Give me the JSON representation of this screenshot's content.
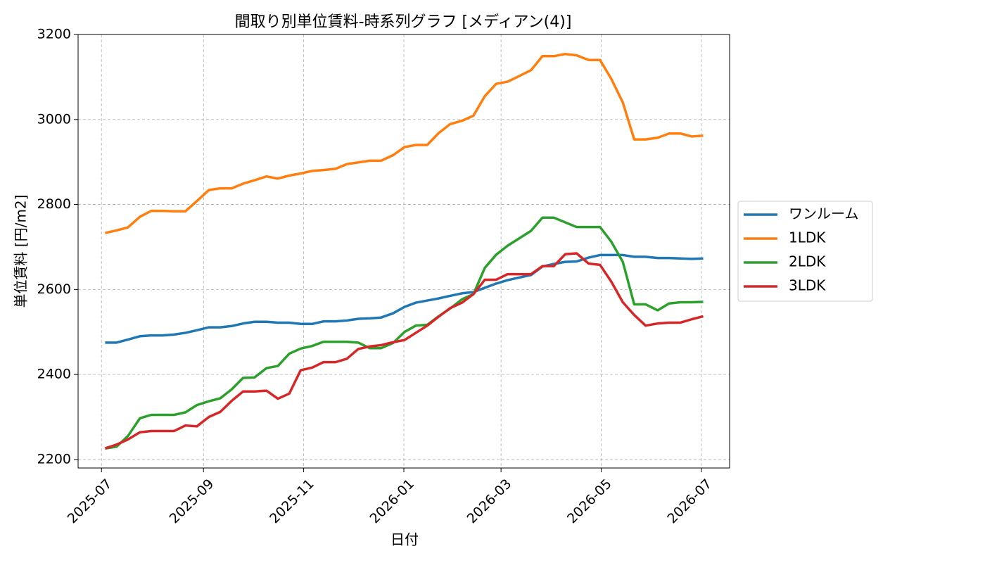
{
  "chart_data": {
    "type": "line",
    "title": "間取り別単位賃料-時系列グラフ [メディアン(4)]",
    "x_label": "日付",
    "y_label": "単位賃料 [円/m2]",
    "x": [
      2025.502,
      2025.521,
      2025.54,
      2025.56,
      2025.579,
      2025.598,
      2025.617,
      2025.636,
      2025.655,
      2025.675,
      2025.694,
      2025.713,
      2025.732,
      2025.751,
      2025.771,
      2025.79,
      2025.809,
      2025.828,
      2025.847,
      2025.866,
      2025.886,
      2025.905,
      2025.924,
      2025.943,
      2025.962,
      2025.982,
      2026.001,
      2026.02,
      2026.039,
      2026.058,
      2026.077,
      2026.097,
      2026.116,
      2026.135,
      2026.154,
      2026.173,
      2026.192,
      2026.212,
      2026.231,
      2026.25,
      2026.269,
      2026.288,
      2026.308,
      2026.327,
      2026.346,
      2026.365,
      2026.384,
      2026.403,
      2026.423,
      2026.442,
      2026.461,
      2026.48,
      2026.499
    ],
    "series": [
      {
        "name": "ワンルーム",
        "color": "#1f77b4",
        "values": [
          2475,
          2475,
          2482,
          2490,
          2492,
          2492,
          2494,
          2498,
          2504,
          2511,
          2511,
          2514,
          2520,
          2524,
          2524,
          2522,
          2522,
          2519,
          2519,
          2525,
          2525,
          2527,
          2531,
          2532,
          2534,
          2544,
          2559,
          2569,
          2574,
          2579,
          2585,
          2591,
          2594,
          2604,
          2614,
          2622,
          2628,
          2634,
          2654,
          2660,
          2665,
          2666,
          2675,
          2681,
          2681,
          2681,
          2677,
          2677,
          2674,
          2674,
          2673,
          2672,
          2673
        ]
      },
      {
        "name": "1LDK",
        "color": "#ff7f0e",
        "values": [
          2733,
          2739,
          2746,
          2771,
          2785,
          2785,
          2784,
          2784,
          2808,
          2834,
          2838,
          2838,
          2849,
          2857,
          2866,
          2861,
          2868,
          2873,
          2879,
          2881,
          2884,
          2895,
          2899,
          2903,
          2903,
          2916,
          2935,
          2940,
          2940,
          2968,
          2989,
          2997,
          3009,
          3055,
          3084,
          3089,
          3102,
          3116,
          3149,
          3149,
          3154,
          3151,
          3140,
          3140,
          3095,
          3040,
          2953,
          2953,
          2957,
          2967,
          2967,
          2960,
          2962
        ]
      },
      {
        "name": "2LDK",
        "color": "#2ca02c",
        "values": [
          2226,
          2230,
          2255,
          2297,
          2305,
          2305,
          2305,
          2311,
          2328,
          2337,
          2344,
          2365,
          2392,
          2393,
          2415,
          2420,
          2449,
          2461,
          2467,
          2477,
          2477,
          2477,
          2475,
          2462,
          2462,
          2474,
          2500,
          2515,
          2517,
          2537,
          2555,
          2577,
          2589,
          2651,
          2682,
          2703,
          2720,
          2738,
          2769,
          2769,
          2758,
          2747,
          2747,
          2747,
          2712,
          2665,
          2565,
          2565,
          2551,
          2567,
          2570,
          2570,
          2571
        ]
      },
      {
        "name": "3LDK",
        "color": "#d62728",
        "values": [
          2226,
          2235,
          2247,
          2264,
          2267,
          2267,
          2267,
          2280,
          2278,
          2300,
          2312,
          2338,
          2360,
          2360,
          2362,
          2343,
          2355,
          2410,
          2416,
          2429,
          2429,
          2437,
          2460,
          2466,
          2469,
          2476,
          2481,
          2498,
          2515,
          2536,
          2556,
          2569,
          2589,
          2623,
          2623,
          2636,
          2636,
          2636,
          2655,
          2655,
          2683,
          2685,
          2661,
          2658,
          2618,
          2570,
          2540,
          2515,
          2520,
          2522,
          2522,
          2530,
          2537
        ]
      }
    ],
    "xlim": [
      2025.457,
      2026.543
    ],
    "xticks": [
      {
        "value": 2025.496,
        "label": "2025-07"
      },
      {
        "value": 2025.666,
        "label": "2025-09"
      },
      {
        "value": 2025.833,
        "label": "2025-11"
      },
      {
        "value": 2026.0,
        "label": "2026-01"
      },
      {
        "value": 2026.162,
        "label": "2026-03"
      },
      {
        "value": 2026.329,
        "label": "2026-05"
      },
      {
        "value": 2026.496,
        "label": "2026-07"
      }
    ],
    "ylim": [
      2180,
      3200
    ],
    "yticks": [
      2200,
      2400,
      2600,
      2800,
      3000,
      3200
    ],
    "grid": true,
    "legend": "right"
  }
}
